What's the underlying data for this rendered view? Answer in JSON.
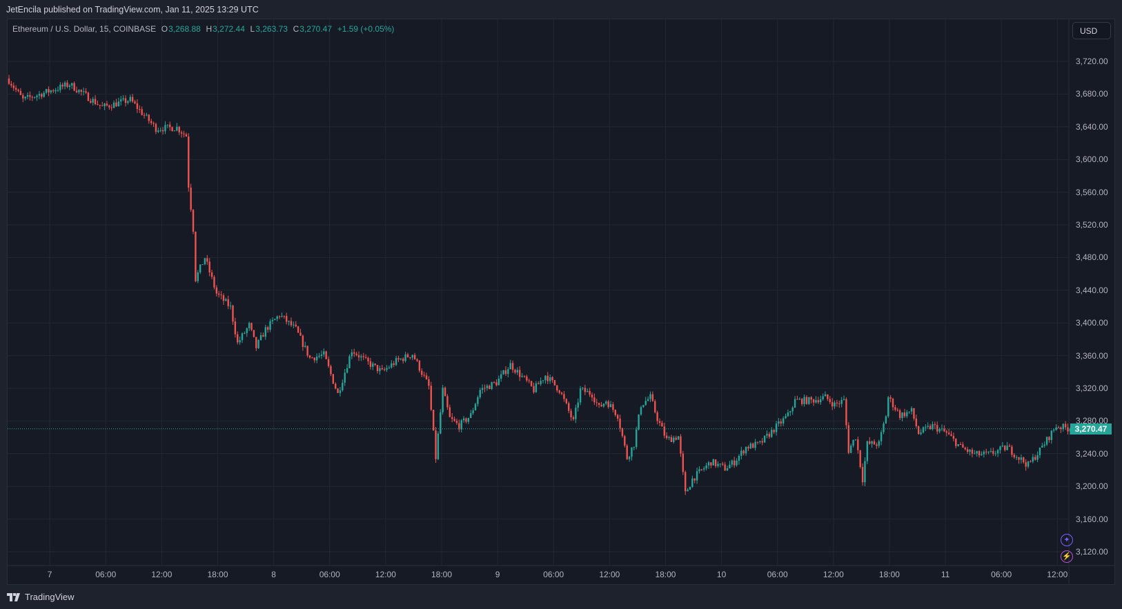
{
  "header": {
    "published": "JetEncila published on TradingView.com, Jan 11, 2025 13:29 UTC"
  },
  "legend": {
    "symbol": "Ethereum / U.S. Dollar, 15, COINBASE",
    "o_label": "O",
    "o": "3,268.88",
    "h_label": "H",
    "h": "3,272.44",
    "l_label": "L",
    "l": "3,263.73",
    "c_label": "C",
    "c": "3,270.47",
    "change": "+1.59 (+0.05%)"
  },
  "currency": "USD",
  "current_price_label": "3,270.47",
  "footer": {
    "brand": "TradingView"
  },
  "colors": {
    "up": "#26a69a",
    "down": "#ef5350",
    "background": "#161a25",
    "grid": "#232733"
  },
  "chart_data": {
    "type": "candlestick",
    "title": "Ethereum / U.S. Dollar, 15, COINBASE",
    "interval_minutes": 15,
    "ylim": [
      3100,
      3740
    ],
    "current_price": 3270.47,
    "y_ticks": [
      {
        "value": 3720,
        "label": "3,720.00"
      },
      {
        "value": 3680,
        "label": "3,680.00"
      },
      {
        "value": 3640,
        "label": "3,640.00"
      },
      {
        "value": 3600,
        "label": "3,600.00"
      },
      {
        "value": 3560,
        "label": "3,560.00"
      },
      {
        "value": 3520,
        "label": "3,520.00"
      },
      {
        "value": 3480,
        "label": "3,480.00"
      },
      {
        "value": 3440,
        "label": "3,440.00"
      },
      {
        "value": 3400,
        "label": "3,400.00"
      },
      {
        "value": 3360,
        "label": "3,360.00"
      },
      {
        "value": 3320,
        "label": "3,320.00"
      },
      {
        "value": 3280,
        "label": "3,280.00"
      },
      {
        "value": 3240,
        "label": "3,240.00"
      },
      {
        "value": 3200,
        "label": "3,200.00"
      },
      {
        "value": 3160,
        "label": "3,160.00"
      },
      {
        "value": 3120,
        "label": "3,120.00"
      }
    ],
    "x_ticks": [
      {
        "bar": 17.5,
        "label": "7"
      },
      {
        "bar": 41.5,
        "label": "06:00"
      },
      {
        "bar": 65.5,
        "label": "12:00"
      },
      {
        "bar": 89.5,
        "label": "18:00"
      },
      {
        "bar": 113.5,
        "label": "8"
      },
      {
        "bar": 137.5,
        "label": "06:00"
      },
      {
        "bar": 161.5,
        "label": "12:00"
      },
      {
        "bar": 185.5,
        "label": "18:00"
      },
      {
        "bar": 209.5,
        "label": "9"
      },
      {
        "bar": 233.5,
        "label": "06:00"
      },
      {
        "bar": 257.5,
        "label": "12:00"
      },
      {
        "bar": 281.5,
        "label": "18:00"
      },
      {
        "bar": 305.5,
        "label": "10"
      },
      {
        "bar": 329.5,
        "label": "06:00"
      },
      {
        "bar": 353.5,
        "label": "12:00"
      },
      {
        "bar": 377.5,
        "label": "18:00"
      },
      {
        "bar": 401.5,
        "label": "11"
      },
      {
        "bar": 425.5,
        "label": "06:00"
      },
      {
        "bar": 449.5,
        "label": "12:00"
      }
    ],
    "close_anchors": [
      [
        0,
        3697
      ],
      [
        6,
        3673
      ],
      [
        26,
        3692
      ],
      [
        40,
        3664
      ],
      [
        52,
        3673
      ],
      [
        63,
        3638
      ],
      [
        72,
        3639
      ],
      [
        76,
        3629
      ],
      [
        77,
        3568
      ],
      [
        79,
        3515
      ],
      [
        80,
        3454
      ],
      [
        84,
        3480
      ],
      [
        89,
        3436
      ],
      [
        95,
        3419
      ],
      [
        98,
        3375
      ],
      [
        103,
        3397
      ],
      [
        106,
        3370
      ],
      [
        110,
        3392
      ],
      [
        116,
        3410
      ],
      [
        123,
        3392
      ],
      [
        129,
        3357
      ],
      [
        135,
        3361
      ],
      [
        141,
        3313
      ],
      [
        147,
        3367
      ],
      [
        153,
        3353
      ],
      [
        160,
        3340
      ],
      [
        166,
        3353
      ],
      [
        173,
        3362
      ],
      [
        180,
        3322
      ],
      [
        183,
        3235
      ],
      [
        186,
        3318
      ],
      [
        189,
        3283
      ],
      [
        193,
        3274
      ],
      [
        198,
        3287
      ],
      [
        202,
        3318
      ],
      [
        209,
        3327
      ],
      [
        215,
        3349
      ],
      [
        221,
        3331
      ],
      [
        225,
        3318
      ],
      [
        230,
        3336
      ],
      [
        236,
        3318
      ],
      [
        242,
        3279
      ],
      [
        245,
        3318
      ],
      [
        250,
        3313
      ],
      [
        253,
        3296
      ],
      [
        256,
        3305
      ],
      [
        261,
        3287
      ],
      [
        265,
        3235
      ],
      [
        268,
        3252
      ],
      [
        271,
        3300
      ],
      [
        275,
        3309
      ],
      [
        278,
        3283
      ],
      [
        282,
        3257
      ],
      [
        287,
        3261
      ],
      [
        290,
        3191
      ],
      [
        293,
        3209
      ],
      [
        296,
        3217
      ],
      [
        301,
        3230
      ],
      [
        307,
        3222
      ],
      [
        311,
        3230
      ],
      [
        316,
        3248
      ],
      [
        322,
        3252
      ],
      [
        328,
        3270
      ],
      [
        334,
        3287
      ],
      [
        337,
        3305
      ],
      [
        344,
        3305
      ],
      [
        350,
        3309
      ],
      [
        354,
        3300
      ],
      [
        358,
        3305
      ],
      [
        360,
        3244
      ],
      [
        363,
        3261
      ],
      [
        366,
        3209
      ],
      [
        368,
        3252
      ],
      [
        373,
        3252
      ],
      [
        376,
        3287
      ],
      [
        377,
        3309
      ],
      [
        382,
        3287
      ],
      [
        387,
        3292
      ],
      [
        390,
        3265
      ],
      [
        396,
        3274
      ],
      [
        402,
        3265
      ],
      [
        408,
        3248
      ],
      [
        414,
        3239
      ],
      [
        420,
        3239
      ],
      [
        428,
        3248
      ],
      [
        433,
        3235
      ],
      [
        437,
        3226
      ],
      [
        442,
        3244
      ],
      [
        446,
        3261
      ],
      [
        449,
        3274
      ],
      [
        455,
        3270.47
      ]
    ]
  }
}
